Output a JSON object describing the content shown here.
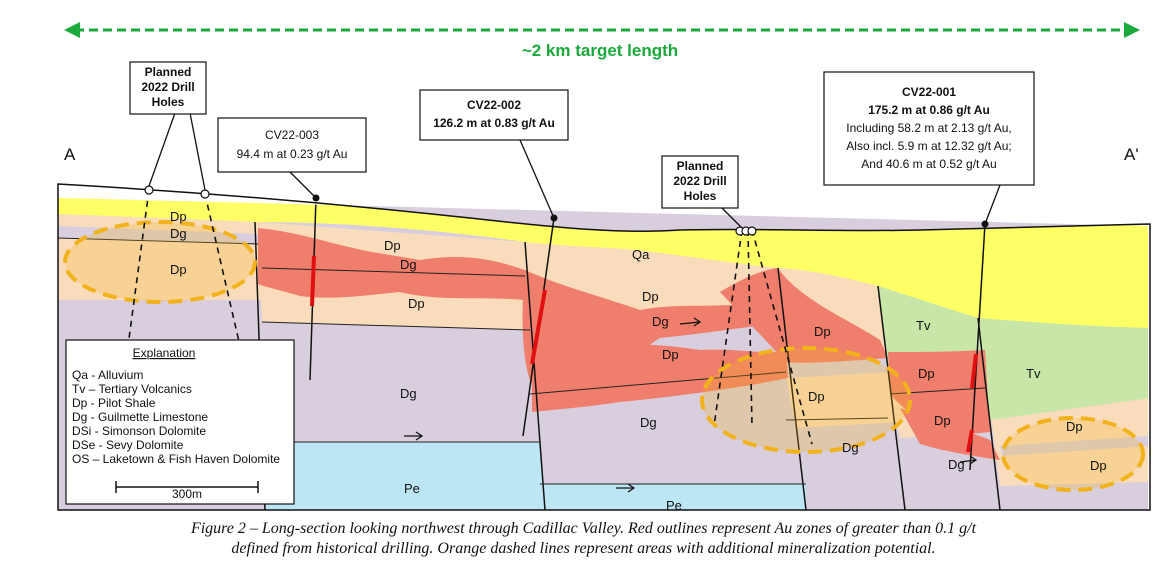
{
  "target_length_label": "~2 km target length",
  "endpoints": {
    "left": "A",
    "right": "A'"
  },
  "colors": {
    "alluvium": "#ffff66",
    "tertiary_volcanics": "#c8e6a8",
    "pilot_shale": "#f8dcbc",
    "guilmette_limestone": "#d8cedd",
    "pe": "#bde6f5",
    "au_zone": "#f07e6c",
    "drill_intercept": "#e01010",
    "potential_outline": "#f2b21c",
    "target_arrow": "#1ba83c"
  },
  "planned_holes": [
    {
      "label_line1": "Planned",
      "label_line2": "2022 Drill",
      "label_line3": "Holes"
    },
    {
      "label_line1": "Planned",
      "label_line2": "2022 Drill",
      "label_line3": "Holes"
    }
  ],
  "drill_results": [
    {
      "hole": "CV22-003",
      "line1": "94.4 m at 0.23 g/t Au"
    },
    {
      "hole": "CV22-002",
      "line1": "126.2 m at 0.83 g/t Au"
    },
    {
      "hole": "CV22-001",
      "line1": "175.2 m at 0.86 g/t Au",
      "line2": "Including 58.2 m at 2.13 g/t Au,",
      "line3": "Also incl. 5.9 m at 12.32 g/t Au;",
      "line4": "And 40.6 m at 0.52 g/t Au"
    }
  ],
  "unit_labels": {
    "dp_top_left": "Dp",
    "dg_top_left": "Dg",
    "dp_left_oval": "Dp",
    "dp_left_center": "Dp",
    "dg_left_center": "Dg",
    "dp_left_lower": "Dp",
    "dg_center_left": "Dg",
    "pe_left": "Pe",
    "qa": "Qa",
    "dp_center": "Dp",
    "dg_center_band": "Dg",
    "dp_center_red": "Dp",
    "dg_center": "Dg",
    "pe_center": "Pe",
    "dp_right_red": "Dp",
    "dp_right_oval": "Dp",
    "dg_right_oval": "Dg",
    "tv_left": "Tv",
    "dp_right_red2": "Dp",
    "dp_right_red3": "Dp",
    "dg_right": "Dg",
    "tv_right": "Tv",
    "dp_far_right_upper": "Dp",
    "dp_far_right_lower": "Dp"
  },
  "explanation": {
    "title": "Explanation",
    "items": [
      "Qa - Alluvium",
      "Tv – Tertiary Volcanics",
      "Dp - Pilot Shale",
      "Dg - Guilmette Limestone",
      "DSi - Simonson Dolomite",
      "DSe - Sevy Dolomite",
      "OS – Laketown & Fish Haven Dolomite"
    ],
    "scale_label": "300m"
  },
  "caption": {
    "line1": "Figure 2 – Long-section looking northwest through Cadillac Valley. Red outlines represent Au zones of greater than 0.1 g/t",
    "line2": "defined from historical drilling. Orange dashed lines represent areas with additional mineralization potential."
  }
}
